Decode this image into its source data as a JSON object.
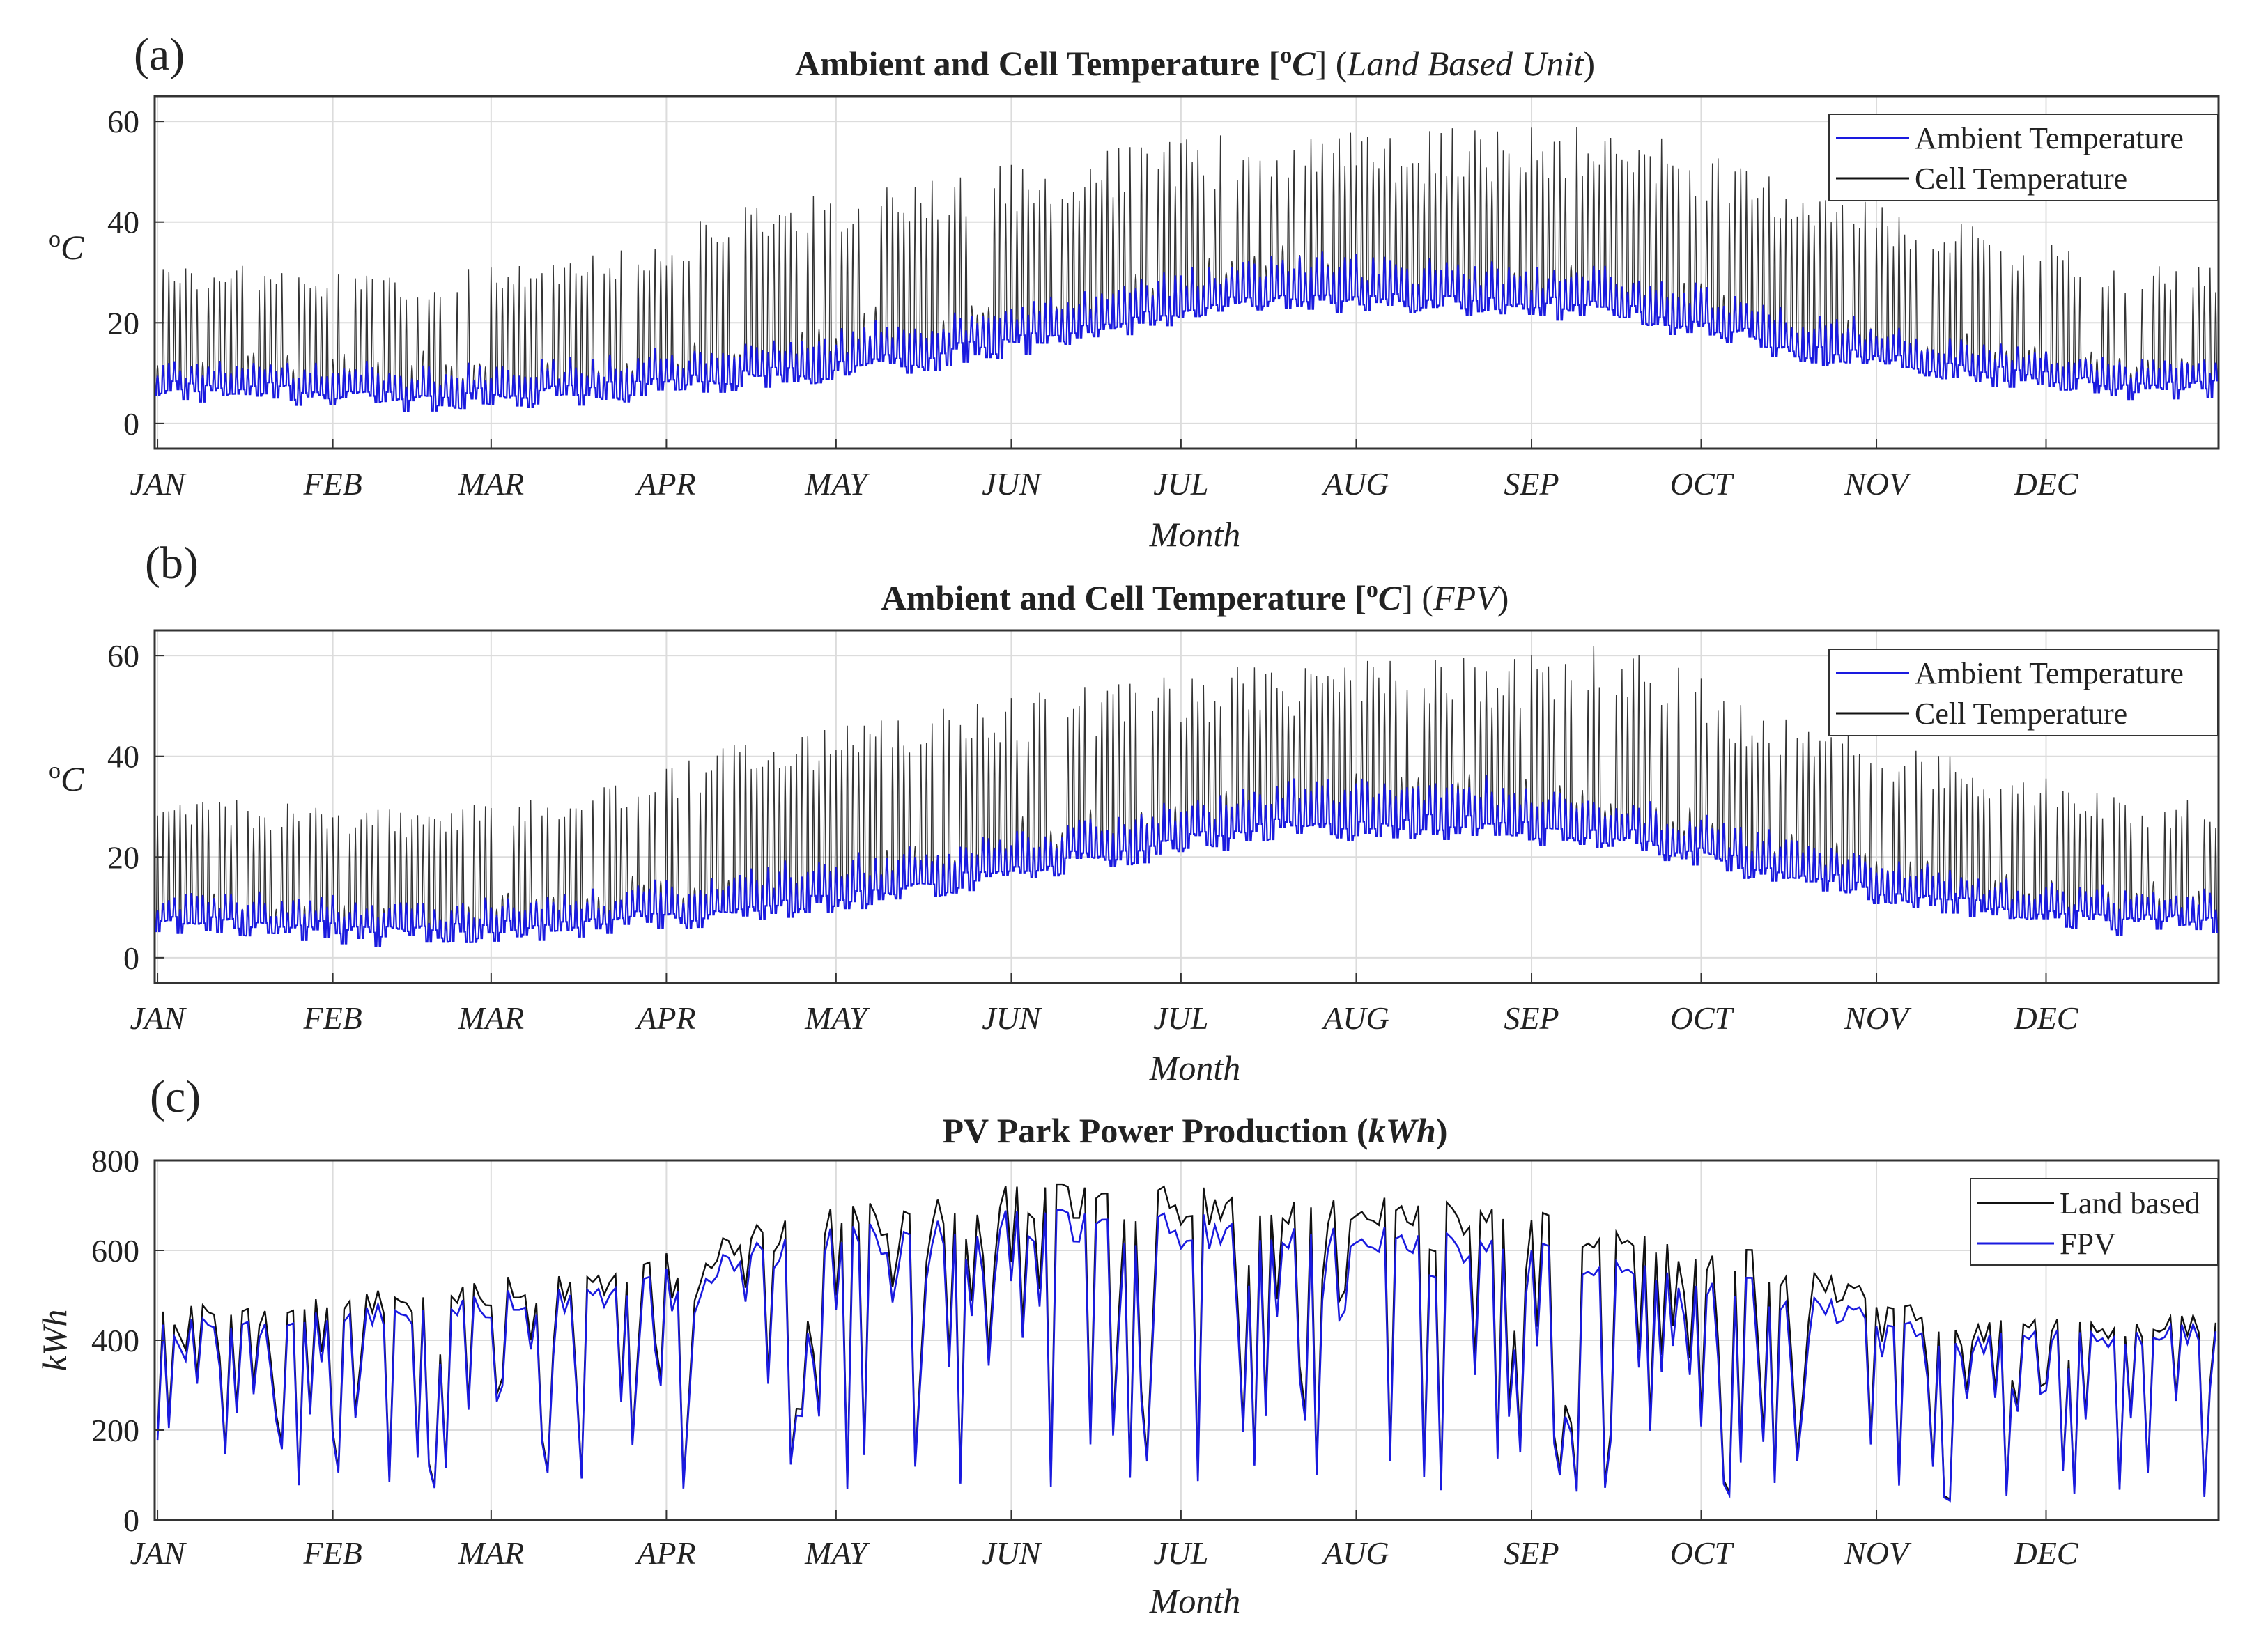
{
  "colors": {
    "ambient": "#1a1adf",
    "cell": "#111111",
    "land_based": "#111111",
    "fpv": "#1a1adf",
    "grid": "#dcdcdc",
    "axis": "#333333"
  },
  "months": [
    "JAN",
    "FEB",
    "MAR",
    "APR",
    "MAY",
    "JUN",
    "JUL",
    "AUG",
    "SEP",
    "OCT",
    "NOV",
    "DEC"
  ],
  "chart_data": [
    {
      "id": "a",
      "panel_label": "(a)",
      "type": "line",
      "title": "Ambient and Cell Temperature [",
      "title_sup": "o",
      "title_unit": "C",
      "title_rb": "] (",
      "title_suffix": "Land Based Unit",
      "title_rp": ")",
      "xlabel": "Month",
      "ylabel_sup": "o",
      "ylabel": "C",
      "ylim": [
        -5,
        65
      ],
      "yticks": [
        0,
        20,
        40,
        60
      ],
      "x_unit": "day of year (hourly resolution)",
      "xlim": [
        0,
        365
      ],
      "legend": [
        "Ambient Temperature",
        "Cell Temperature"
      ],
      "legend_position": "top-right",
      "series": [
        {
          "name": "Ambient Temperature",
          "color_key": "ambient",
          "seasonal_daily_mean_by_month": [
            8,
            6,
            8,
            11,
            15,
            21,
            27,
            26,
            25,
            17,
            12,
            8
          ],
          "daily_amplitude_by_month": [
            3,
            3,
            3,
            4,
            4,
            4,
            5,
            4,
            4,
            4,
            3,
            3
          ]
        },
        {
          "name": "Cell Temperature",
          "color_key": "cell",
          "daily_peak_by_month": [
            30,
            28,
            32,
            42,
            47,
            52,
            56,
            56,
            58,
            45,
            38,
            30
          ]
        }
      ]
    },
    {
      "id": "b",
      "panel_label": "(b)",
      "type": "line",
      "title": "Ambient and Cell Temperature [",
      "title_sup": "o",
      "title_unit": "C",
      "title_rb": "] (",
      "title_suffix": "FPV",
      "title_rp": ")",
      "xlabel": "Month",
      "ylabel_sup": "o",
      "ylabel": "C",
      "ylim": [
        -5,
        65
      ],
      "yticks": [
        0,
        20,
        40,
        60
      ],
      "x_unit": "day of year (hourly resolution)",
      "xlim": [
        0,
        365
      ],
      "legend": [
        "Ambient Temperature",
        "Cell Temperature"
      ],
      "legend_position": "top-right",
      "series": [
        {
          "name": "Ambient Temperature",
          "color_key": "ambient",
          "seasonal_daily_mean_by_month": [
            8,
            6,
            8,
            12,
            16,
            22,
            28,
            29,
            26,
            18,
            12,
            8
          ],
          "daily_amplitude_by_month": [
            3,
            3,
            3,
            4,
            4,
            4,
            5,
            5,
            4,
            4,
            3,
            3
          ]
        },
        {
          "name": "Cell Temperature",
          "color_key": "cell",
          "daily_peak_by_month": [
            30,
            28,
            32,
            42,
            47,
            52,
            56,
            57,
            60,
            45,
            38,
            30
          ]
        }
      ]
    },
    {
      "id": "c",
      "panel_label": "(c)",
      "type": "line",
      "title": "PV Park Power Production (",
      "title_unit": "kWh",
      "title_rp": ")",
      "xlabel": "Month",
      "ylabel": "kWh",
      "ylim": [
        0,
        800
      ],
      "yticks": [
        0,
        200,
        400,
        600,
        800
      ],
      "x_unit": "day of year",
      "xlim": [
        0,
        365
      ],
      "legend": [
        "Land based",
        "FPV"
      ],
      "legend_position": "top-right",
      "series": [
        {
          "name": "Land based",
          "color_key": "land_based",
          "clear_sky_kwh_by_month": [
            480,
            520,
            560,
            660,
            740,
            750,
            740,
            720,
            680,
            580,
            440,
            460
          ]
        },
        {
          "name": "FPV",
          "color_key": "fpv",
          "clear_sky_kwh_by_month": [
            450,
            490,
            530,
            620,
            690,
            690,
            680,
            650,
            610,
            520,
            410,
            440
          ]
        }
      ]
    }
  ]
}
